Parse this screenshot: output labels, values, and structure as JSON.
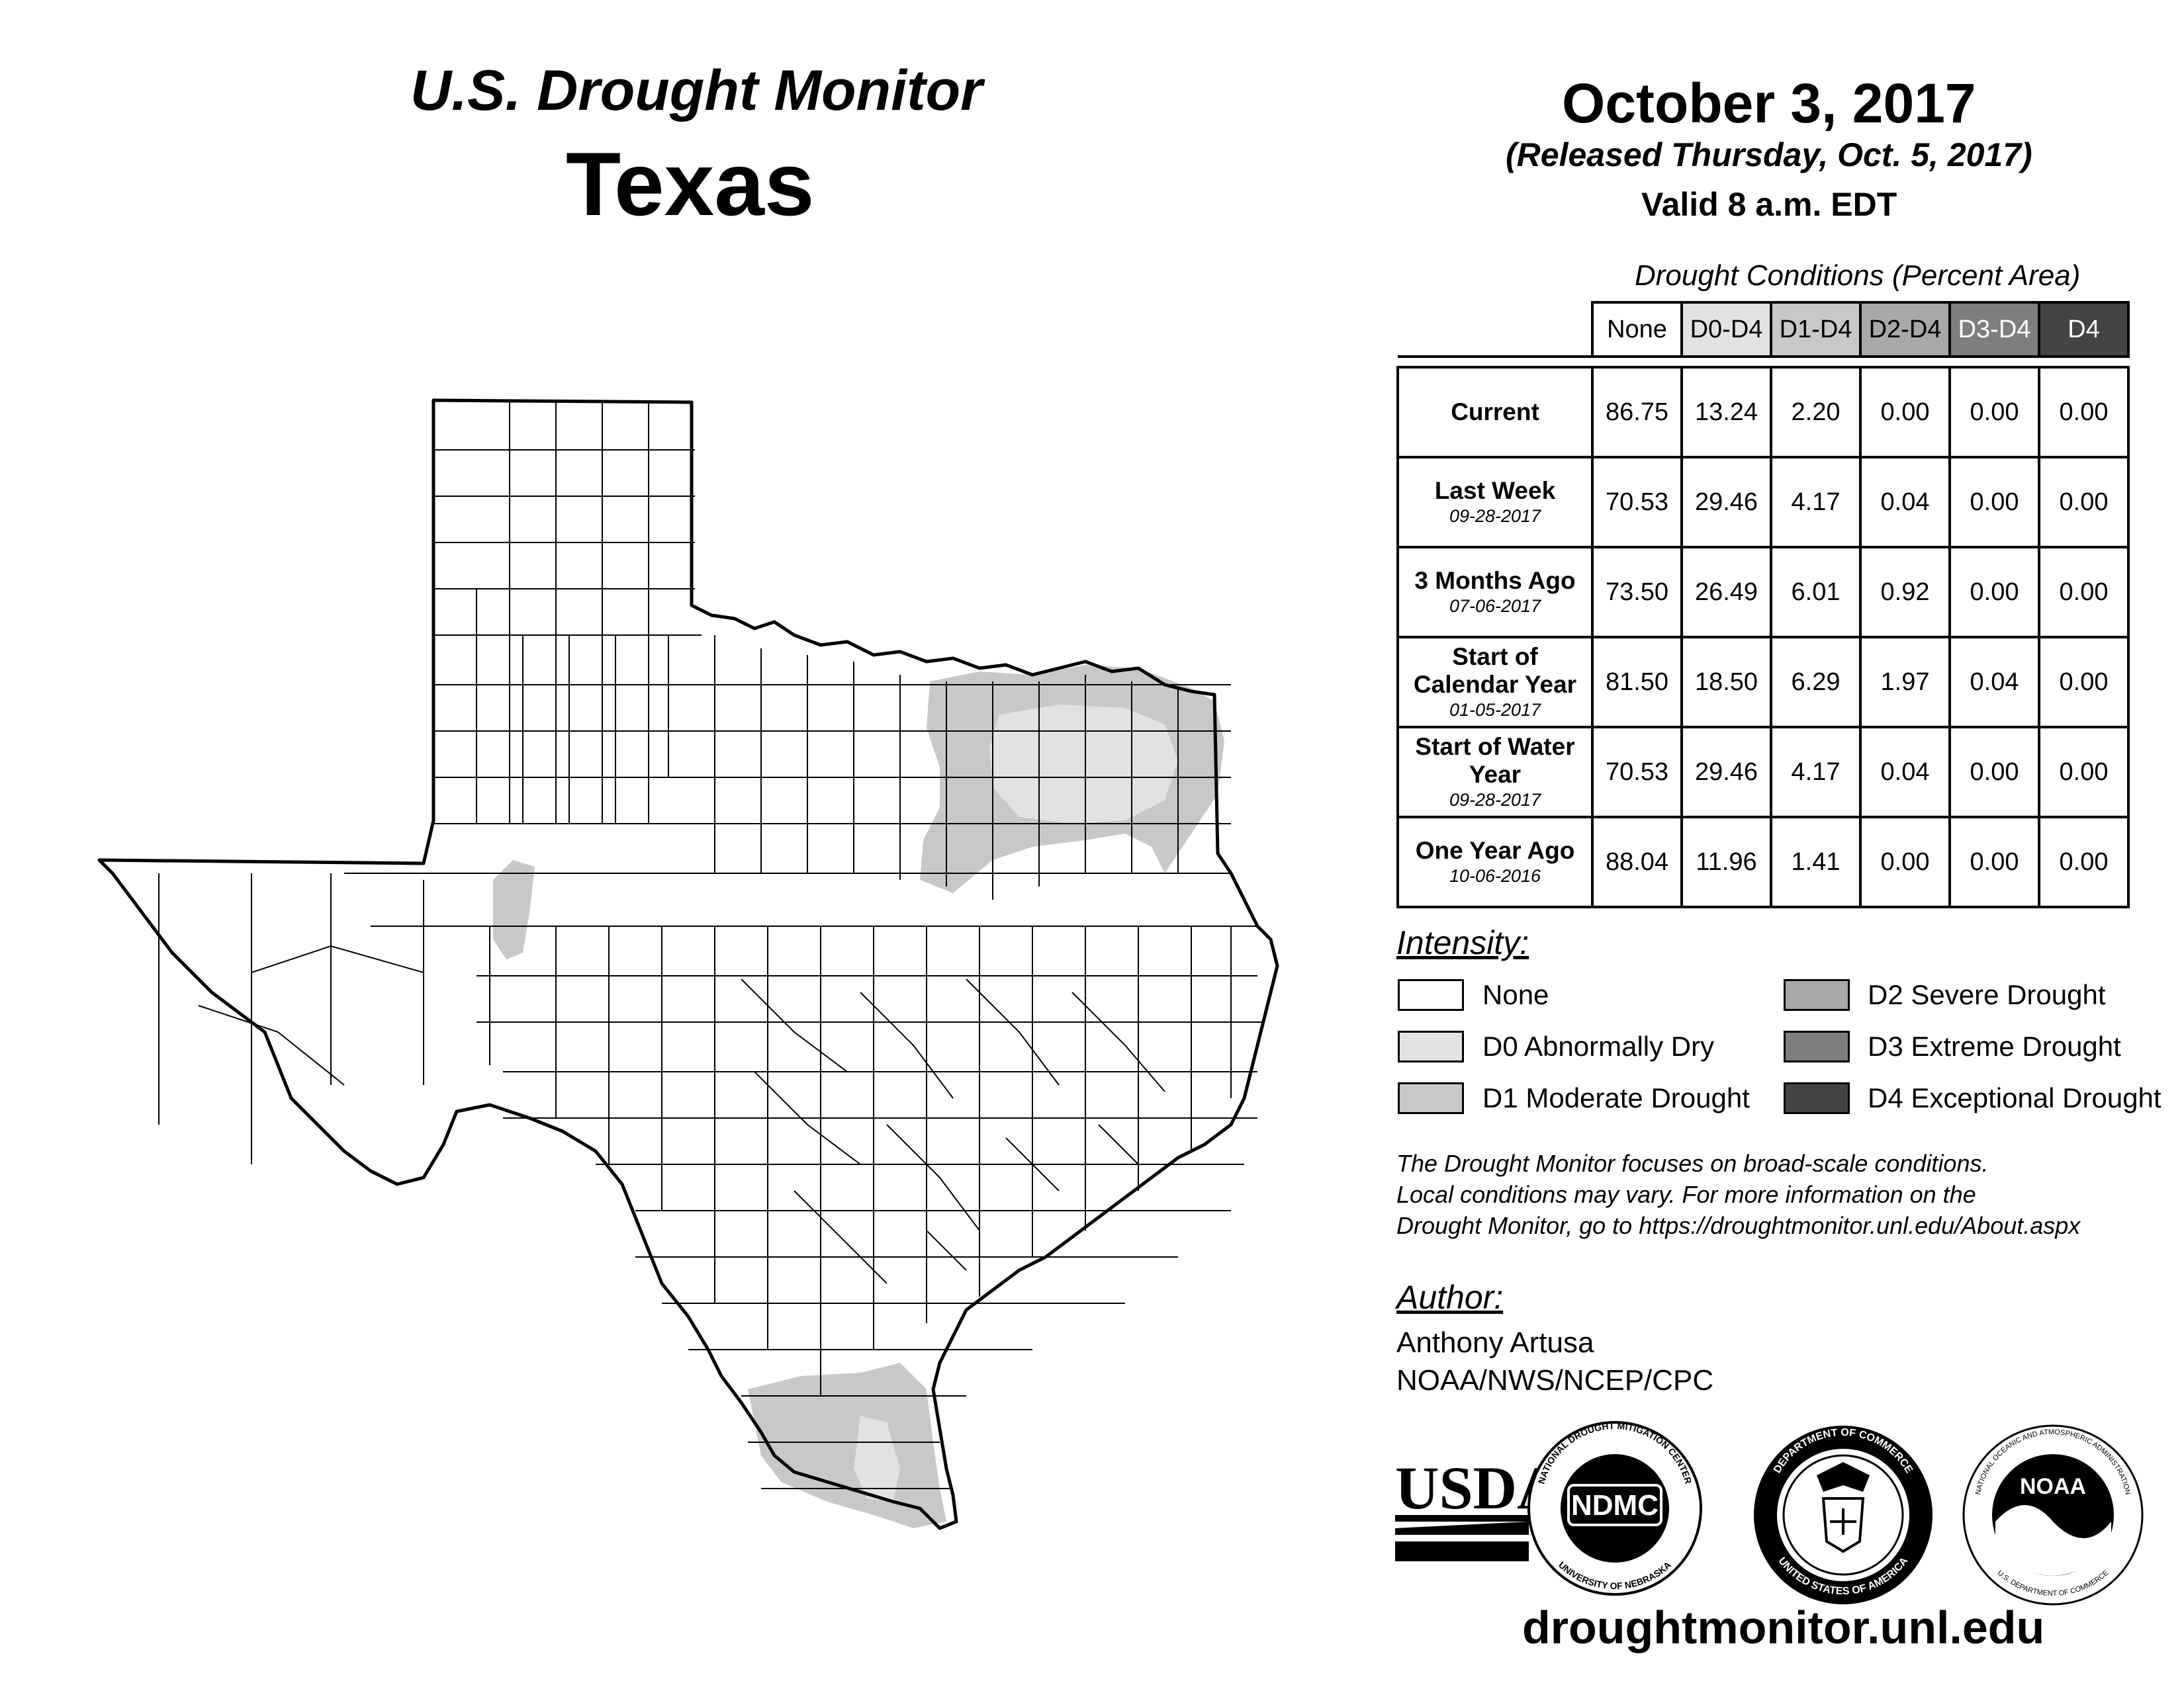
{
  "header": {
    "product": "U.S. Drought Monitor",
    "region": "Texas",
    "date": "October 3, 2017",
    "released": "(Released Thursday, Oct. 5, 2017)",
    "valid": "Valid 8 a.m. EDT"
  },
  "table": {
    "caption": "Drought Conditions (Percent Area)",
    "columns": [
      "None",
      "D0-D4",
      "D1-D4",
      "D2-D4",
      "D3-D4",
      "D4"
    ],
    "column_colors": [
      "#ffffff",
      "#e2e2e2",
      "#c8c8c8",
      "#a8a8a8",
      "#7e7e7e",
      "#444444"
    ],
    "rows": [
      {
        "label": "Current",
        "sublabel": "",
        "values": [
          "86.75",
          "13.24",
          "2.20",
          "0.00",
          "0.00",
          "0.00"
        ]
      },
      {
        "label": "Last Week",
        "sublabel": "09-28-2017",
        "values": [
          "70.53",
          "29.46",
          "4.17",
          "0.04",
          "0.00",
          "0.00"
        ]
      },
      {
        "label": "3 Months Ago",
        "sublabel": "07-06-2017",
        "values": [
          "73.50",
          "26.49",
          "6.01",
          "0.92",
          "0.00",
          "0.00"
        ]
      },
      {
        "label": "Start of Calendar Year",
        "sublabel": "01-05-2017",
        "values": [
          "81.50",
          "18.50",
          "6.29",
          "1.97",
          "0.04",
          "0.00"
        ]
      },
      {
        "label": "Start of Water Year",
        "sublabel": "09-28-2017",
        "values": [
          "70.53",
          "29.46",
          "4.17",
          "0.04",
          "0.00",
          "0.00"
        ]
      },
      {
        "label": "One Year Ago",
        "sublabel": "10-06-2016",
        "values": [
          "88.04",
          "11.96",
          "1.41",
          "0.00",
          "0.00",
          "0.00"
        ]
      }
    ]
  },
  "legend": {
    "heading": "Intensity:",
    "items": [
      {
        "label": "None",
        "color": "#ffffff"
      },
      {
        "label": "D0 Abnormally Dry",
        "color": "#e2e2e2"
      },
      {
        "label": "D1 Moderate Drought",
        "color": "#c8c8c8"
      },
      {
        "label": "D2 Severe Drought",
        "color": "#a8a8a8"
      },
      {
        "label": "D3 Extreme Drought",
        "color": "#7e7e7e"
      },
      {
        "label": "D4 Exceptional Drought",
        "color": "#444444"
      }
    ]
  },
  "disclaimer": [
    "The Drought Monitor focuses on broad-scale conditions.",
    "Local conditions may vary. For more information on the",
    "Drought Monitor, go to https://droughtmonitor.unl.edu/About.aspx"
  ],
  "author": {
    "heading": "Author:",
    "name": "Anthony Artusa",
    "org": "NOAA/NWS/NCEP/CPC"
  },
  "logos": {
    "usda": "USDA",
    "ndmc": "NDMC",
    "ndmc_ring_top": "NATIONAL DROUGHT MITIGATION CENTER",
    "ndmc_ring_bottom": "UNIVERSITY OF NEBRASKA",
    "doc_ring_top": "DEPARTMENT OF COMMERCE",
    "doc_ring_bottom": "UNITED STATES OF AMERICA",
    "noaa": "NOAA",
    "noaa_ring_top": "NATIONAL OCEANIC AND ATMOSPHERIC ADMINISTRATION",
    "noaa_ring_bottom": "U.S. DEPARTMENT OF COMMERCE"
  },
  "website": "droughtmonitor.unl.edu",
  "map": {
    "state": "Texas",
    "category_colors": {
      "D0": "#e2e2e2",
      "D1": "#c8c8c8"
    }
  }
}
